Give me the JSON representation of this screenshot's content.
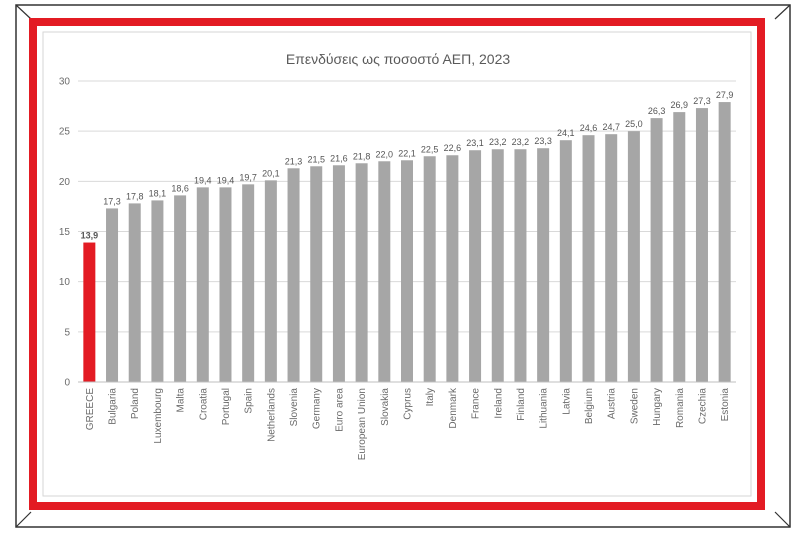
{
  "chart_data": {
    "type": "bar",
    "title": "Επενδύσεις ως ποσοστό ΑΕΠ, 2023",
    "xlabel": "",
    "ylabel": "",
    "ylim": [
      0,
      30
    ],
    "yticks": [
      "0",
      "5",
      "10",
      "15",
      "20",
      "25",
      "30"
    ],
    "grid": true,
    "legend": "none",
    "categories": [
      "GREECE",
      "Bulgaria",
      "Poland",
      "Luxembourg",
      "Malta",
      "Croatia",
      "Portugal",
      "Spain",
      "Netherlands",
      "Slovenia",
      "Germany",
      "Euro area",
      "European Union",
      "Slovakia",
      "Cyprus",
      "Italy",
      "Denmark",
      "France",
      "Ireland",
      "Finland",
      "Lithuania",
      "Latvia",
      "Belgium",
      "Austria",
      "Sweden",
      "Hungary",
      "Romania",
      "Czechia",
      "Estonia"
    ],
    "values": [
      13.9,
      17.3,
      17.8,
      18.1,
      18.6,
      19.4,
      19.4,
      19.7,
      20.1,
      21.3,
      21.5,
      21.6,
      21.8,
      22.0,
      22.1,
      22.5,
      22.6,
      23.1,
      23.2,
      23.2,
      23.3,
      24.1,
      24.6,
      24.7,
      25.0,
      26.3,
      26.9,
      27.3,
      27.9
    ],
    "value_labels": [
      "13,9",
      "17,3",
      "17,8",
      "18,1",
      "18,6",
      "19,4",
      "19,4",
      "19,7",
      "20,1",
      "21,3",
      "21,5",
      "21,6",
      "21,8",
      "22,0",
      "22,1",
      "22,5",
      "22,6",
      "23,1",
      "23,2",
      "23,2",
      "23,3",
      "24,1",
      "24,6",
      "24,7",
      "25,0",
      "26,3",
      "26,9",
      "27,3",
      "27,9"
    ],
    "highlight_index": 0,
    "colors": {
      "bar": "#a6a6a6",
      "highlight": "#e31b23",
      "frame": "#e31b23",
      "grid": "#d9d9d9"
    }
  }
}
